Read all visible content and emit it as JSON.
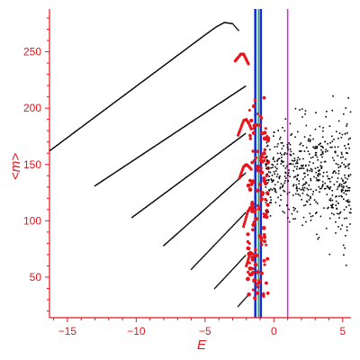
{
  "chart_data": {
    "type": "scatter",
    "title": "",
    "xlabel": "E",
    "ylabel": "<m>",
    "xlim": [
      -16.3,
      5.6
    ],
    "ylim": [
      14,
      288
    ],
    "xticks": [
      -15,
      -10,
      -5,
      0,
      5
    ],
    "yticks": [
      50,
      100,
      150,
      200,
      250
    ],
    "grid": false,
    "legend": "none",
    "colors": {
      "axis": "#e8141b",
      "black_points": "#000000",
      "red_points": "#e8141b",
      "line_blue": "#0a2bd6",
      "line_green": "#1aa84a",
      "line_magenta": "#e619e6"
    },
    "vertical_lines": [
      {
        "x": -1.35,
        "color": "#0a2bd6",
        "width": 2.5
      },
      {
        "x": -1.12,
        "color": "#1aa84a",
        "width": 1.5
      },
      {
        "x": -0.95,
        "color": "#0a2bd6",
        "width": 2.5
      },
      {
        "x": 1.0,
        "color": "#e619e6",
        "width": 1.5
      }
    ],
    "black_branches": [
      {
        "x": [
          -16.3,
          -5.0,
          -4.2,
          -3.6,
          -3.0,
          -2.5
        ],
        "y": [
          162,
          265,
          272,
          276,
          275,
          268
        ]
      },
      {
        "x": [
          -13.0,
          -2.0
        ],
        "y": [
          131,
          220
        ]
      },
      {
        "x": [
          -10.3,
          -2.0
        ],
        "y": [
          103,
          178
        ]
      },
      {
        "x": [
          -8.0,
          -2.0
        ],
        "y": [
          78,
          143
        ]
      },
      {
        "x": [
          -6.0,
          -2.0
        ],
        "y": [
          57,
          108
        ]
      },
      {
        "x": [
          -4.3,
          -2.0
        ],
        "y": [
          40,
          70
        ]
      },
      {
        "x": [
          -2.6,
          -1.8
        ],
        "y": [
          24,
          35
        ]
      }
    ],
    "red_branches": [
      {
        "x": [
          -2.8,
          -2.4,
          -2.2,
          -2.0,
          -1.8
        ],
        "y": [
          242,
          248,
          248,
          243,
          238
        ]
      },
      {
        "x": [
          -2.6,
          -2.2,
          -2.0,
          -1.8,
          -1.6
        ],
        "y": [
          176,
          189,
          190,
          186,
          180
        ]
      },
      {
        "x": [
          -2.5,
          -2.2,
          -2.0,
          -1.8,
          -1.6
        ],
        "y": [
          138,
          148,
          150,
          148,
          145
        ]
      },
      {
        "x": [
          -2.2,
          -1.9,
          -1.7,
          -1.5
        ],
        "y": [
          95,
          108,
          112,
          108
        ]
      },
      {
        "x": [
          -2.0,
          -1.7,
          -1.5
        ],
        "y": [
          60,
          72,
          70
        ]
      }
    ],
    "scatter_region": {
      "x_range": [
        -0.6,
        5.6
      ],
      "y_range": [
        50,
        288
      ],
      "density_center": 142
    }
  }
}
